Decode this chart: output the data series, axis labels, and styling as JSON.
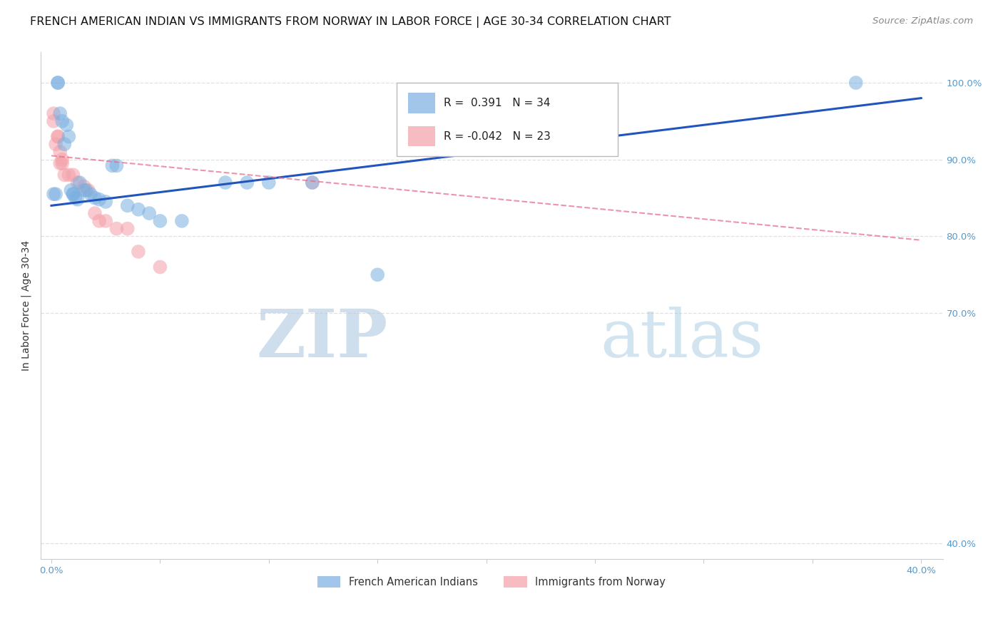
{
  "title": "FRENCH AMERICAN INDIAN VS IMMIGRANTS FROM NORWAY IN LABOR FORCE | AGE 30-34 CORRELATION CHART",
  "source": "Source: ZipAtlas.com",
  "ylabel": "In Labor Force | Age 30-34",
  "xlim": [
    -0.005,
    0.41
  ],
  "ylim": [
    0.38,
    1.04
  ],
  "y_ticks": [
    0.4,
    0.7,
    0.8,
    0.9,
    1.0
  ],
  "y_tick_labels": [
    "40.0%",
    "70.0%",
    "80.0%",
    "90.0%",
    "100.0%"
  ],
  "x_ticks": [
    0.0,
    0.05,
    0.1,
    0.15,
    0.2,
    0.25,
    0.3,
    0.35,
    0.4
  ],
  "x_tick_labels": [
    "0.0%",
    "",
    "",
    "",
    "",
    "",
    "",
    "",
    "40.0%"
  ],
  "legend_blue_r": "0.391",
  "legend_blue_n": "34",
  "legend_pink_r": "-0.042",
  "legend_pink_n": "23",
  "blue_scatter_x": [
    0.001,
    0.002,
    0.003,
    0.003,
    0.004,
    0.005,
    0.006,
    0.007,
    0.008,
    0.009,
    0.01,
    0.01,
    0.011,
    0.012,
    0.013,
    0.015,
    0.016,
    0.018,
    0.02,
    0.022,
    0.025,
    0.028,
    0.03,
    0.035,
    0.04,
    0.045,
    0.05,
    0.06,
    0.08,
    0.09,
    0.1,
    0.12,
    0.15,
    0.37
  ],
  "blue_scatter_y": [
    0.855,
    0.855,
    1.0,
    1.0,
    0.96,
    0.95,
    0.92,
    0.945,
    0.93,
    0.86,
    0.855,
    0.855,
    0.85,
    0.848,
    0.87,
    0.86,
    0.86,
    0.855,
    0.85,
    0.848,
    0.845,
    0.892,
    0.892,
    0.84,
    0.835,
    0.83,
    0.82,
    0.82,
    0.87,
    0.87,
    0.87,
    0.87,
    0.75,
    1.0
  ],
  "pink_scatter_x": [
    0.001,
    0.001,
    0.002,
    0.003,
    0.003,
    0.004,
    0.004,
    0.005,
    0.005,
    0.006,
    0.008,
    0.01,
    0.012,
    0.015,
    0.017,
    0.02,
    0.022,
    0.025,
    0.03,
    0.035,
    0.04,
    0.05,
    0.12
  ],
  "pink_scatter_y": [
    0.95,
    0.96,
    0.92,
    0.93,
    0.93,
    0.91,
    0.895,
    0.895,
    0.9,
    0.88,
    0.88,
    0.88,
    0.87,
    0.865,
    0.86,
    0.83,
    0.82,
    0.82,
    0.81,
    0.81,
    0.78,
    0.76,
    0.87
  ],
  "blue_line_x": [
    0.0,
    0.4
  ],
  "blue_line_y": [
    0.84,
    0.98
  ],
  "pink_line_x": [
    0.0,
    0.4
  ],
  "pink_line_y": [
    0.905,
    0.795
  ],
  "watermark_zip": "ZIP",
  "watermark_atlas": "atlas",
  "blue_color": "#7AAFE0",
  "pink_color": "#F4A0A8",
  "blue_line_color": "#2255BB",
  "pink_line_color": "#E87090",
  "grid_color": "#DDDDDD",
  "right_axis_color": "#5599CC",
  "title_fontsize": 11.5,
  "source_fontsize": 9.5,
  "axis_label_fontsize": 10,
  "tick_fontsize": 9.5
}
